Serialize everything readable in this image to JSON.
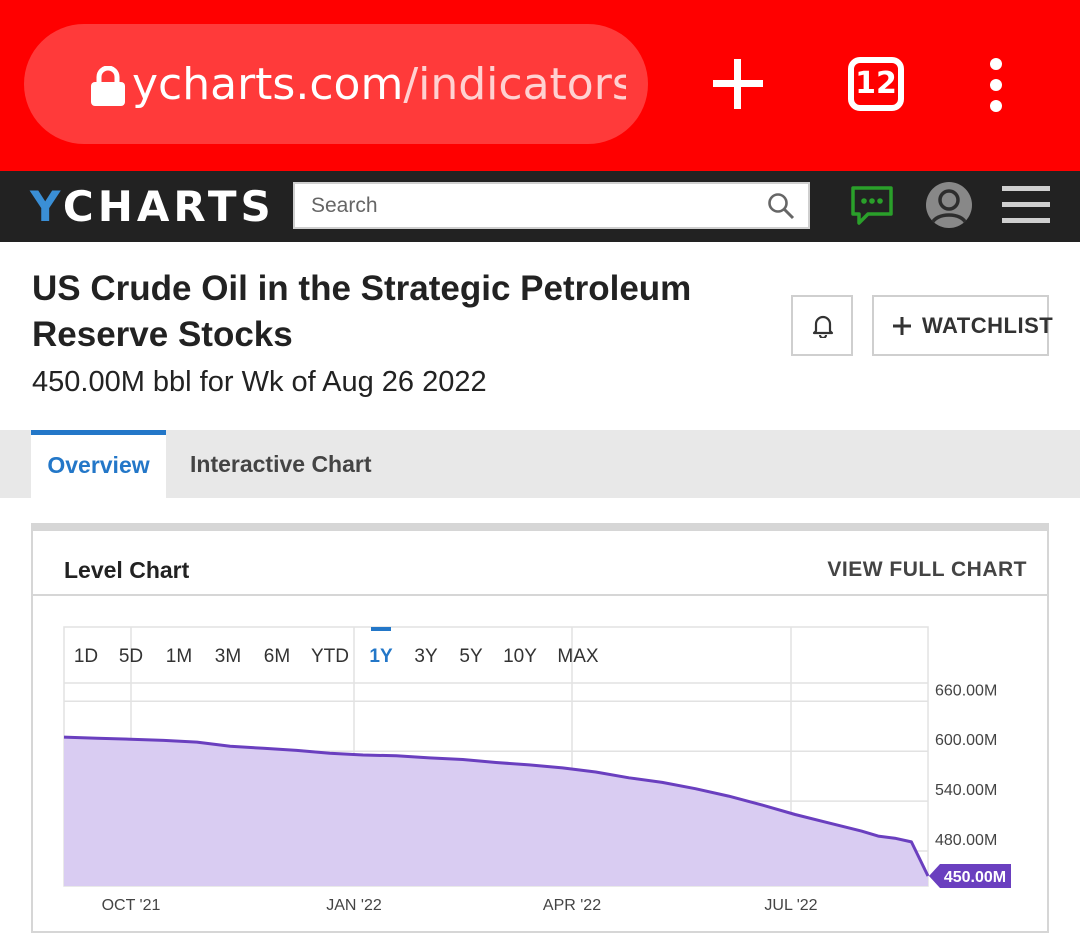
{
  "browser": {
    "url_host": "ycharts.com",
    "url_path": "/indicators",
    "tab_count": "12"
  },
  "header": {
    "logo_y": "Y",
    "logo_rest": "CHARTS",
    "search_placeholder": "Search"
  },
  "page": {
    "title": "US Crude Oil in the Strategic Petroleum Reserve Stocks",
    "subtitle": "450.00M bbl for Wk of Aug 26 2022",
    "watchlist_label": "WATCHLIST"
  },
  "tabs": [
    {
      "label": "Overview",
      "active": true
    },
    {
      "label": "Interactive Chart",
      "active": false
    }
  ],
  "card": {
    "title": "Level Chart",
    "view_full_label": "VIEW FULL CHART"
  },
  "colors": {
    "browser_bar": "#ff0000",
    "accent_blue": "#2377c8",
    "series_line": "#6a3fbf",
    "series_fill": "#d9ccf2"
  },
  "chart_data": {
    "type": "area",
    "ranges": [
      "1D",
      "5D",
      "1M",
      "3M",
      "6M",
      "YTD",
      "1Y",
      "3Y",
      "5Y",
      "10Y",
      "MAX"
    ],
    "selected_range": "1Y",
    "x_tick_labels": [
      "OCT '21",
      "JAN '22",
      "APR '22",
      "JUL '22"
    ],
    "y_tick_labels": [
      "660.00M",
      "600.00M",
      "540.00M",
      "480.00M"
    ],
    "y_ticks": [
      660,
      600,
      540,
      480
    ],
    "ylim": [
      438,
      682
    ],
    "xlim": [
      0,
      52
    ],
    "grid": true,
    "last_value_label": "450.00M",
    "series": [
      {
        "unit": "M bbl",
        "x": [
          0,
          2,
          4,
          6,
          8,
          10,
          12,
          14,
          16,
          18,
          20,
          22,
          24,
          26,
          28,
          30,
          32,
          34,
          36,
          38,
          40,
          42,
          44,
          46,
          48,
          49,
          50,
          51,
          52
        ],
        "values": [
          617.0,
          615.5,
          614.5,
          613.0,
          611.0,
          606.0,
          603.5,
          601.0,
          597.5,
          595.5,
          594.5,
          592.0,
          590.0,
          586.5,
          583.5,
          580.0,
          575.0,
          568.0,
          562.5,
          555.0,
          546.0,
          535.5,
          524.0,
          514.0,
          504.0,
          498.0,
          495.5,
          491.0,
          450.0
        ]
      }
    ]
  }
}
